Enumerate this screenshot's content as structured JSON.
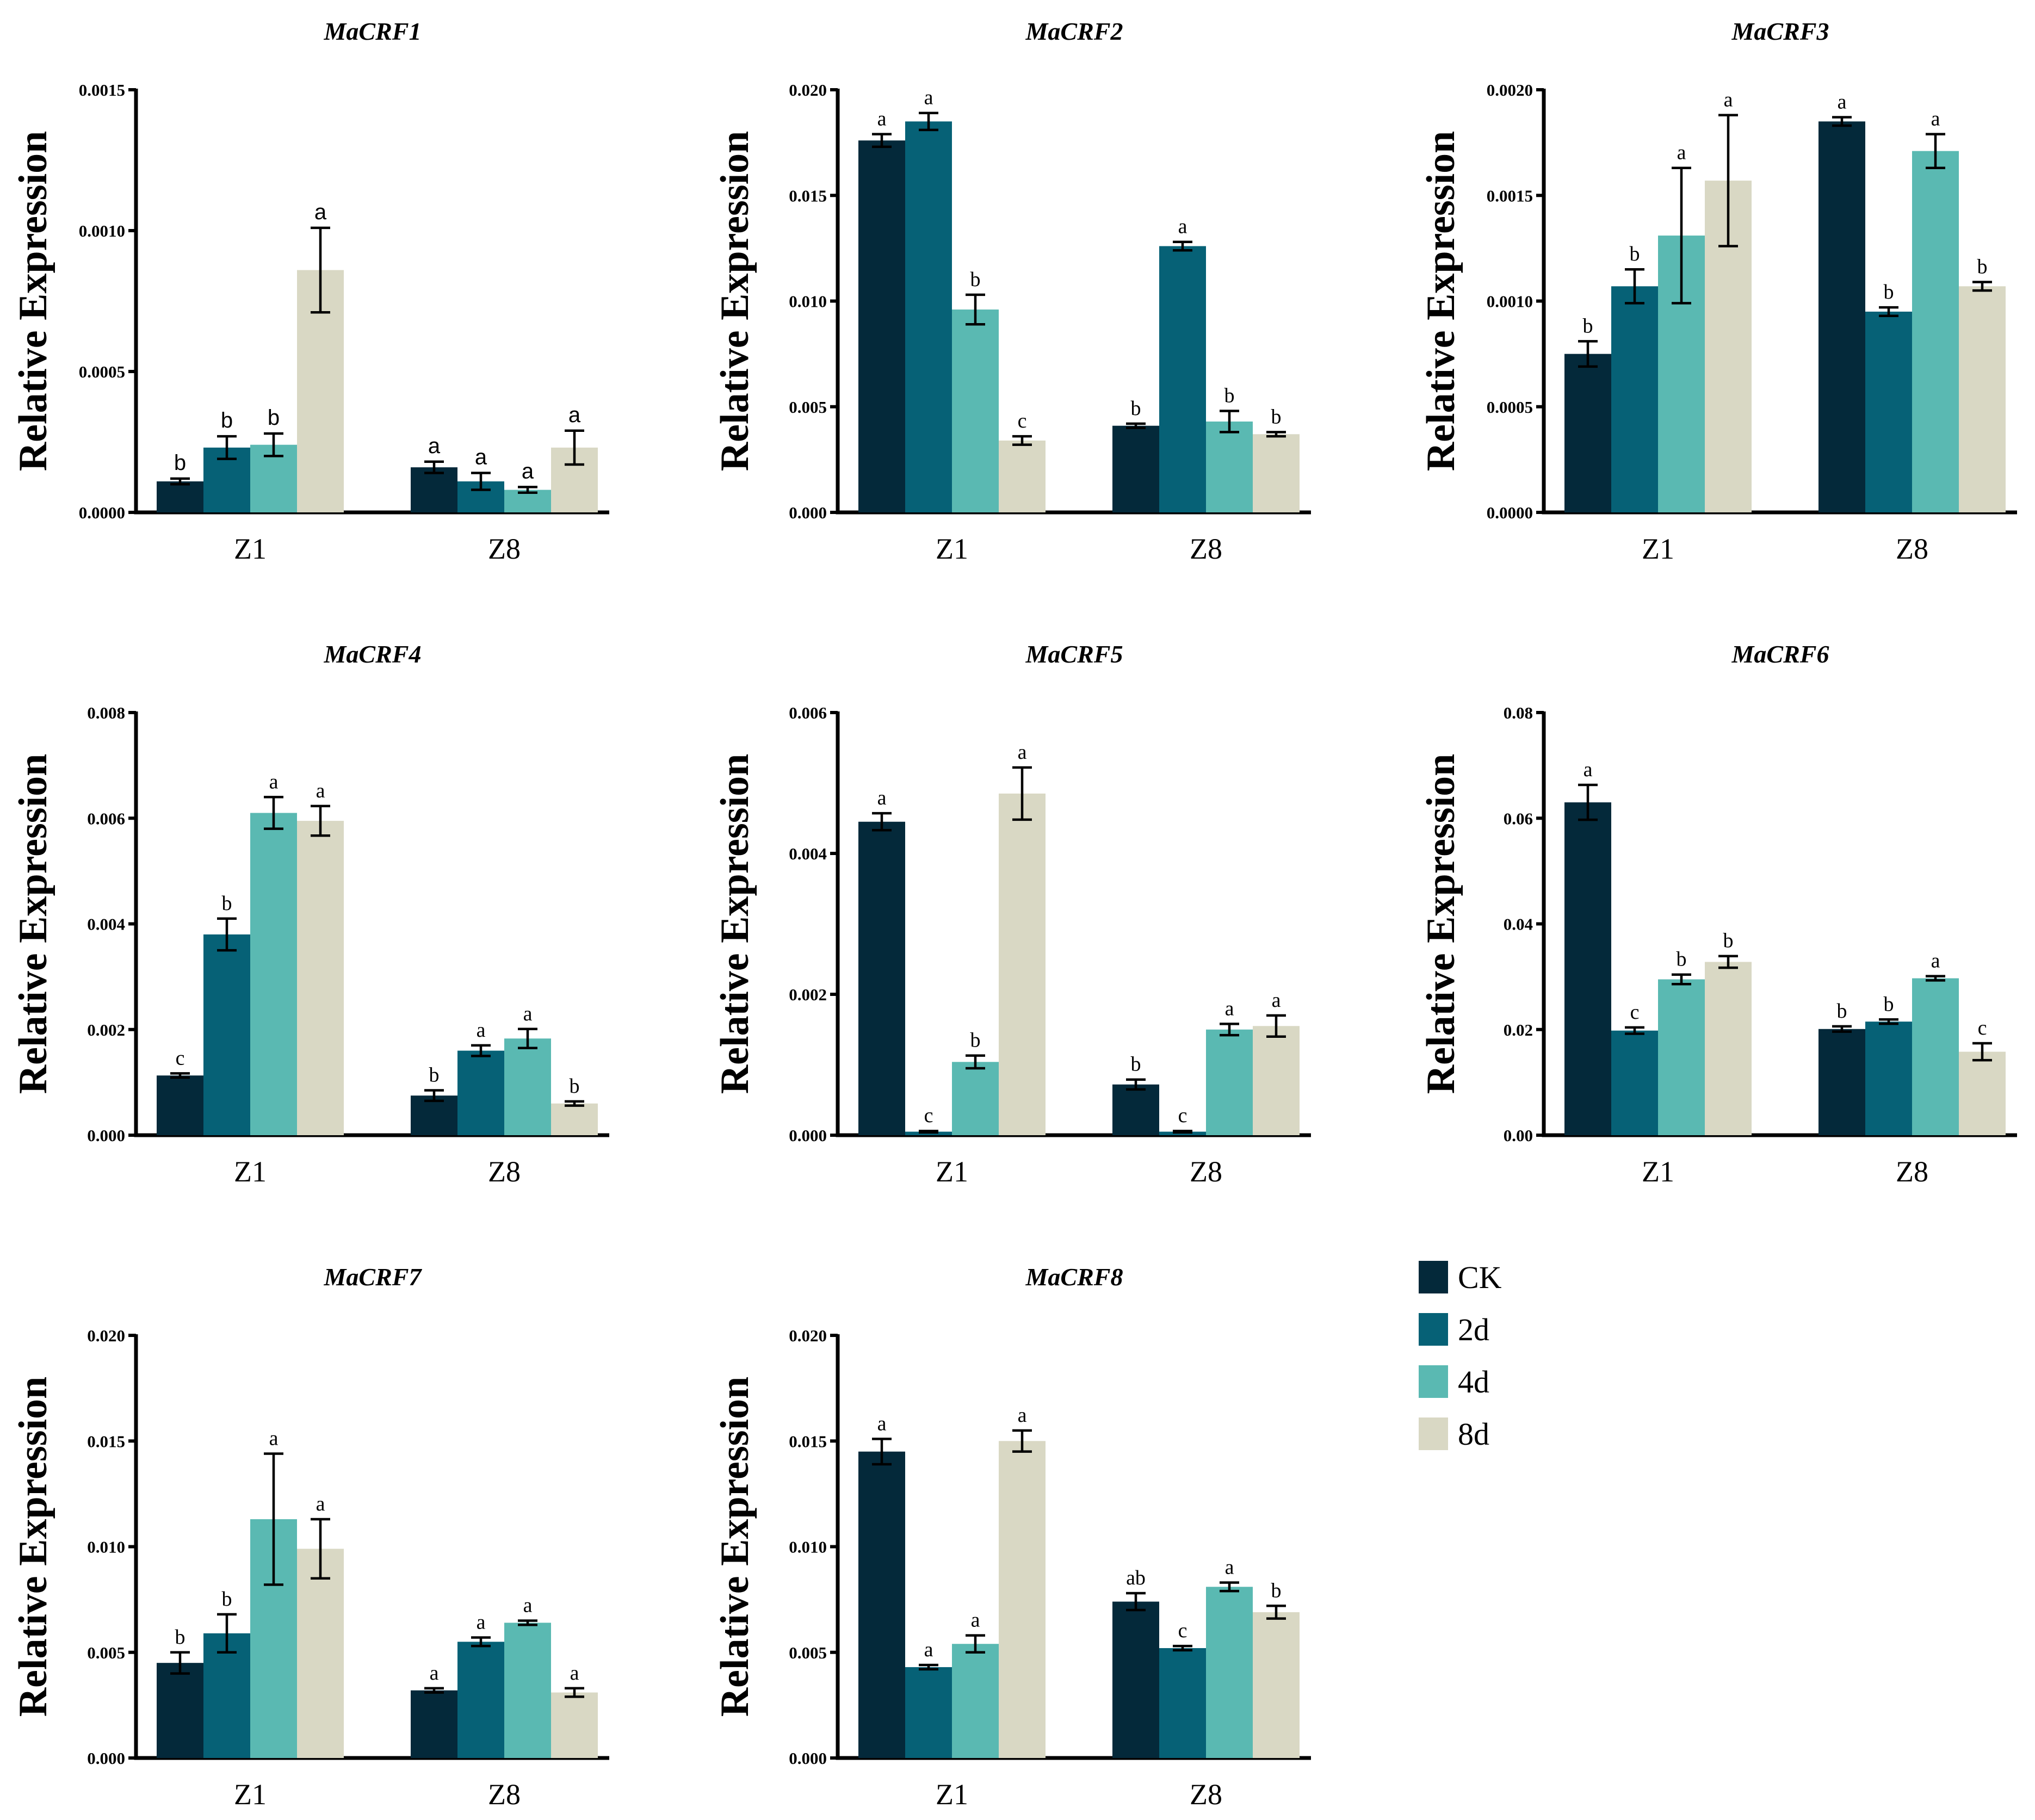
{
  "colors": {
    "CK": "#04293a",
    "2d": "#066176",
    "4d": "#5ab9b2",
    "8d": "#d9d8c4"
  },
  "legend": [
    {
      "key": "CK",
      "label": "CK"
    },
    {
      "key": "2d",
      "label": "2d"
    },
    {
      "key": "4d",
      "label": "4d"
    },
    {
      "key": "8d",
      "label": "8d"
    }
  ],
  "chart_data": [
    {
      "type": "bar",
      "title": "MaCRF1",
      "ylabel": "Relative Expression",
      "categories": [
        "Z1",
        "Z8"
      ],
      "ylim": [
        0,
        0.0015
      ],
      "yticks": [
        "0.0000",
        "0.0005",
        "0.0010",
        "0.0015"
      ],
      "sig_font": "sans",
      "series": [
        {
          "name": "CK",
          "values": [
            0.00011,
            0.00016
          ],
          "errors": [
            1e-05,
            2e-05
          ],
          "letters": [
            "b",
            "a"
          ]
        },
        {
          "name": "2d",
          "values": [
            0.00023,
            0.00011
          ],
          "errors": [
            4e-05,
            3e-05
          ],
          "letters": [
            "b",
            "a"
          ]
        },
        {
          "name": "4d",
          "values": [
            0.00024,
            8e-05
          ],
          "errors": [
            4e-05,
            1e-05
          ],
          "letters": [
            "b",
            "a"
          ]
        },
        {
          "name": "8d",
          "values": [
            0.00086,
            0.00023
          ],
          "errors": [
            0.00015,
            6e-05
          ],
          "letters": [
            "a",
            "a"
          ]
        }
      ]
    },
    {
      "type": "bar",
      "title": "MaCRF2",
      "ylabel": "Relative Expression",
      "categories": [
        "Z1",
        "Z8"
      ],
      "ylim": [
        0,
        0.02
      ],
      "yticks": [
        "0.000",
        "0.005",
        "0.010",
        "0.015",
        "0.020"
      ],
      "sig_font": "serif",
      "series": [
        {
          "name": "CK",
          "values": [
            0.0176,
            0.0041
          ],
          "errors": [
            0.0003,
            0.0001
          ],
          "letters": [
            "a",
            "b"
          ]
        },
        {
          "name": "2d",
          "values": [
            0.0185,
            0.0126
          ],
          "errors": [
            0.0004,
            0.0002
          ],
          "letters": [
            "a",
            "a"
          ]
        },
        {
          "name": "4d",
          "values": [
            0.0096,
            0.0043
          ],
          "errors": [
            0.0007,
            0.0005
          ],
          "letters": [
            "b",
            "b"
          ]
        },
        {
          "name": "8d",
          "values": [
            0.0034,
            0.0037
          ],
          "errors": [
            0.0002,
            0.0001
          ],
          "letters": [
            "c",
            "b"
          ]
        }
      ]
    },
    {
      "type": "bar",
      "title": "MaCRF3",
      "ylabel": "Relative Expression",
      "categories": [
        "Z1",
        "Z8"
      ],
      "ylim": [
        0,
        0.002
      ],
      "yticks": [
        "0.0000",
        "0.0005",
        "0.0010",
        "0.0015",
        "0.0020"
      ],
      "sig_font": "serif",
      "series": [
        {
          "name": "CK",
          "values": [
            0.00075,
            0.00185
          ],
          "errors": [
            6e-05,
            2e-05
          ],
          "letters": [
            "b",
            "a"
          ]
        },
        {
          "name": "2d",
          "values": [
            0.00107,
            0.00095
          ],
          "errors": [
            8e-05,
            2e-05
          ],
          "letters": [
            "b",
            "b"
          ]
        },
        {
          "name": "4d",
          "values": [
            0.00131,
            0.00171
          ],
          "errors": [
            0.00032,
            8e-05
          ],
          "letters": [
            "a",
            "a"
          ]
        },
        {
          "name": "8d",
          "values": [
            0.00157,
            0.00107
          ],
          "errors": [
            0.00031,
            2e-05
          ],
          "letters": [
            "a",
            "b"
          ]
        }
      ]
    },
    {
      "type": "bar",
      "title": "MaCRF4",
      "ylabel": "Relative Expression",
      "categories": [
        "Z1",
        "Z8"
      ],
      "ylim": [
        0,
        0.008
      ],
      "yticks": [
        "0.000",
        "0.002",
        "0.004",
        "0.006",
        "0.008"
      ],
      "sig_font": "serif",
      "series": [
        {
          "name": "CK",
          "values": [
            0.00113,
            0.00075
          ],
          "errors": [
            4e-05,
            0.0001
          ],
          "letters": [
            "c",
            "b"
          ]
        },
        {
          "name": "2d",
          "values": [
            0.0038,
            0.0016
          ],
          "errors": [
            0.0003,
            0.0001
          ],
          "letters": [
            "b",
            "a"
          ]
        },
        {
          "name": "4d",
          "values": [
            0.0061,
            0.00183
          ],
          "errors": [
            0.0003,
            0.00018
          ],
          "letters": [
            "a",
            "a"
          ]
        },
        {
          "name": "8d",
          "values": [
            0.00595,
            0.0006
          ],
          "errors": [
            0.00028,
            4e-05
          ],
          "letters": [
            "a",
            "b"
          ]
        }
      ]
    },
    {
      "type": "bar",
      "title": "MaCRF5",
      "ylabel": "Relative Expression",
      "categories": [
        "Z1",
        "Z8"
      ],
      "ylim": [
        0,
        0.006
      ],
      "yticks": [
        "0.000",
        "0.002",
        "0.004",
        "0.006"
      ],
      "sig_font": "serif",
      "series": [
        {
          "name": "CK",
          "values": [
            0.00445,
            0.00072
          ],
          "errors": [
            0.00012,
            7e-05
          ],
          "letters": [
            "a",
            "b"
          ]
        },
        {
          "name": "2d",
          "values": [
            5e-05,
            5e-05
          ],
          "errors": [
            1e-05,
            1e-05
          ],
          "letters": [
            "c",
            "c"
          ]
        },
        {
          "name": "4d",
          "values": [
            0.00104,
            0.0015
          ],
          "errors": [
            9e-05,
            8e-05
          ],
          "letters": [
            "b",
            "a"
          ]
        },
        {
          "name": "8d",
          "values": [
            0.00485,
            0.00155
          ],
          "errors": [
            0.00037,
            0.00015
          ],
          "letters": [
            "a",
            "a"
          ]
        }
      ]
    },
    {
      "type": "bar",
      "title": "MaCRF6",
      "ylabel": "Relative Expression",
      "categories": [
        "Z1",
        "Z8"
      ],
      "ylim": [
        0,
        0.08
      ],
      "yticks": [
        "0.00",
        "0.02",
        "0.04",
        "0.06",
        "0.08"
      ],
      "sig_font": "serif",
      "series": [
        {
          "name": "CK",
          "values": [
            0.063,
            0.0201
          ],
          "errors": [
            0.0033,
            0.0005
          ],
          "letters": [
            "a",
            "b"
          ]
        },
        {
          "name": "2d",
          "values": [
            0.0198,
            0.0215
          ],
          "errors": [
            0.0006,
            0.0004
          ],
          "letters": [
            "c",
            "b"
          ]
        },
        {
          "name": "4d",
          "values": [
            0.0295,
            0.0297
          ],
          "errors": [
            0.0009,
            0.0004
          ],
          "letters": [
            "b",
            "a"
          ]
        },
        {
          "name": "8d",
          "values": [
            0.0328,
            0.0158
          ],
          "errors": [
            0.0011,
            0.0016
          ],
          "letters": [
            "b",
            "c"
          ]
        }
      ]
    },
    {
      "type": "bar",
      "title": "MaCRF7",
      "ylabel": "Relative Expression",
      "categories": [
        "Z1",
        "Z8"
      ],
      "ylim": [
        0,
        0.02
      ],
      "yticks": [
        "0.000",
        "0.005",
        "0.010",
        "0.015",
        "0.020"
      ],
      "sig_font": "serif",
      "series": [
        {
          "name": "CK",
          "values": [
            0.0045,
            0.0032
          ],
          "errors": [
            0.0005,
            0.0001
          ],
          "letters": [
            "b",
            "a"
          ]
        },
        {
          "name": "2d",
          "values": [
            0.0059,
            0.0055
          ],
          "errors": [
            0.0009,
            0.0002
          ],
          "letters": [
            "b",
            "a"
          ]
        },
        {
          "name": "4d",
          "values": [
            0.0113,
            0.0064
          ],
          "errors": [
            0.0031,
            0.0001
          ],
          "letters": [
            "a",
            "a"
          ]
        },
        {
          "name": "8d",
          "values": [
            0.0099,
            0.0031
          ],
          "errors": [
            0.0014,
            0.0002
          ],
          "letters": [
            "a",
            "a"
          ]
        }
      ]
    },
    {
      "type": "bar",
      "title": "MaCRF8",
      "ylabel": "Relative Expression",
      "categories": [
        "Z1",
        "Z8"
      ],
      "ylim": [
        0,
        0.02
      ],
      "yticks": [
        "0.000",
        "0.005",
        "0.010",
        "0.015",
        "0.020"
      ],
      "sig_font": "serif",
      "series": [
        {
          "name": "CK",
          "values": [
            0.0145,
            0.0074
          ],
          "errors": [
            0.0006,
            0.0004
          ],
          "letters": [
            "a",
            "ab"
          ]
        },
        {
          "name": "2d",
          "values": [
            0.0043,
            0.0052
          ],
          "errors": [
            0.0001,
            0.0001
          ],
          "letters": [
            "a",
            "c"
          ]
        },
        {
          "name": "4d",
          "values": [
            0.0054,
            0.0081
          ],
          "errors": [
            0.0004,
            0.0002
          ],
          "letters": [
            "a",
            "a"
          ]
        },
        {
          "name": "8d",
          "values": [
            0.015,
            0.0069
          ],
          "errors": [
            0.0005,
            0.0003
          ],
          "letters": [
            "a",
            "b"
          ]
        }
      ]
    }
  ]
}
